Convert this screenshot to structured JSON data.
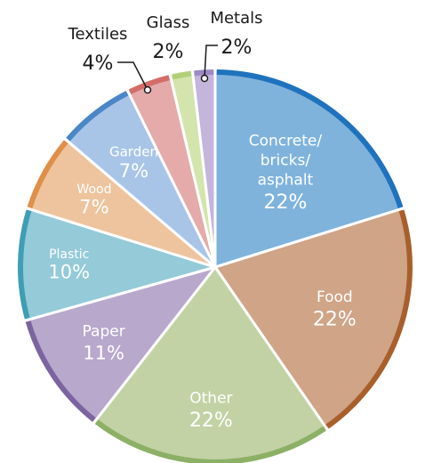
{
  "chart_data": {
    "type": "pie",
    "title": "",
    "slices": [
      {
        "name": "Concrete/ bricks/ asphalt",
        "label_lines": [
          "Concrete/",
          "bricks/",
          "asphalt"
        ],
        "value": 22,
        "value_label": "22%",
        "fill": "#7fb3dc",
        "rim": "#1f72bd"
      },
      {
        "name": "Food",
        "label_lines": [
          "Food"
        ],
        "value": 22,
        "value_label": "22%",
        "fill": "#cfa487",
        "rim": "#a95f2c"
      },
      {
        "name": "Other",
        "label_lines": [
          "Other"
        ],
        "value": 22,
        "value_label": "22%",
        "fill": "#c2d2a5",
        "rim": "#8cb065"
      },
      {
        "name": "Paper",
        "label_lines": [
          "Paper"
        ],
        "value": 11,
        "value_label": "11%",
        "fill": "#b8a8cc",
        "rim": "#7c64a0"
      },
      {
        "name": "Plastic",
        "label_lines": [
          "Plastic"
        ],
        "value": 10,
        "value_label": "10%",
        "fill": "#95cad8",
        "rim": "#3e9eb3"
      },
      {
        "name": "Wood",
        "label_lines": [
          "Wood"
        ],
        "value": 7,
        "value_label": "7%",
        "fill": "#edc49e",
        "rim": "#df8f48"
      },
      {
        "name": "Garden",
        "label_lines": [
          "Garden"
        ],
        "value": 7,
        "value_label": "7%",
        "fill": "#a8c5e8",
        "rim": "#4b86c6"
      },
      {
        "name": "Textiles",
        "label_lines": [
          "Textiles"
        ],
        "value": 4,
        "value_label": "4%",
        "fill": "#e4abaa",
        "rim": "#d36d69"
      },
      {
        "name": "Glass",
        "label_lines": [
          "Glass"
        ],
        "value": 2,
        "value_label": "2%",
        "fill": "#d3e4ad",
        "rim": "#b2d07a"
      },
      {
        "name": "Metals",
        "label_lines": [
          "Metals"
        ],
        "value": 2,
        "value_label": "2%",
        "fill": "#c3b5dc",
        "rim": "#9d89c4"
      }
    ]
  }
}
